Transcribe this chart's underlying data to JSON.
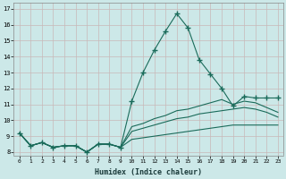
{
  "xlabel": "Humidex (Indice chaleur)",
  "bg_color": "#cce8e8",
  "grid_color": "#c8b8b8",
  "line_color": "#1a6b5a",
  "xlim": [
    -0.5,
    23.5
  ],
  "ylim": [
    7.8,
    17.4
  ],
  "xticks": [
    0,
    1,
    2,
    3,
    4,
    5,
    6,
    7,
    8,
    9,
    10,
    11,
    12,
    13,
    14,
    15,
    16,
    17,
    18,
    19,
    20,
    21,
    22,
    23
  ],
  "yticks": [
    8,
    9,
    10,
    11,
    12,
    13,
    14,
    15,
    16,
    17
  ],
  "series": [
    {
      "x": [
        0,
        1,
        2,
        3,
        4,
        5,
        6,
        7,
        8,
        9,
        10,
        11,
        12,
        13,
        14,
        15,
        16,
        17,
        18,
        19,
        20,
        21,
        22,
        23
      ],
      "y": [
        9.2,
        8.4,
        8.6,
        8.3,
        8.4,
        8.4,
        8.0,
        8.5,
        8.5,
        8.3,
        11.2,
        13.0,
        14.4,
        15.6,
        16.7,
        15.8,
        13.8,
        12.9,
        12.0,
        10.9,
        11.5,
        11.4,
        11.4,
        11.4
      ],
      "marker": "+"
    },
    {
      "x": [
        0,
        1,
        2,
        3,
        4,
        5,
        6,
        7,
        8,
        9,
        10,
        11,
        12,
        13,
        14,
        15,
        16,
        17,
        18,
        19,
        20,
        21,
        22,
        23
      ],
      "y": [
        9.2,
        8.4,
        8.6,
        8.3,
        8.4,
        8.4,
        8.0,
        8.5,
        8.5,
        8.3,
        9.6,
        9.8,
        10.1,
        10.3,
        10.6,
        10.7,
        10.9,
        11.1,
        11.3,
        11.0,
        11.2,
        11.1,
        10.8,
        10.5
      ],
      "marker": null
    },
    {
      "x": [
        0,
        1,
        2,
        3,
        4,
        5,
        6,
        7,
        8,
        9,
        10,
        11,
        12,
        13,
        14,
        15,
        16,
        17,
        18,
        19,
        20,
        21,
        22,
        23
      ],
      "y": [
        9.2,
        8.4,
        8.6,
        8.3,
        8.4,
        8.4,
        8.0,
        8.5,
        8.5,
        8.3,
        9.3,
        9.5,
        9.7,
        9.9,
        10.1,
        10.2,
        10.4,
        10.5,
        10.6,
        10.7,
        10.8,
        10.7,
        10.5,
        10.2
      ],
      "marker": null
    },
    {
      "x": [
        0,
        1,
        2,
        3,
        4,
        5,
        6,
        7,
        8,
        9,
        10,
        11,
        12,
        13,
        14,
        15,
        16,
        17,
        18,
        19,
        20,
        21,
        22,
        23
      ],
      "y": [
        9.2,
        8.4,
        8.6,
        8.3,
        8.4,
        8.4,
        8.0,
        8.5,
        8.5,
        8.3,
        8.8,
        8.9,
        9.0,
        9.1,
        9.2,
        9.3,
        9.4,
        9.5,
        9.6,
        9.7,
        9.7,
        9.7,
        9.7,
        9.7
      ],
      "marker": null
    }
  ]
}
